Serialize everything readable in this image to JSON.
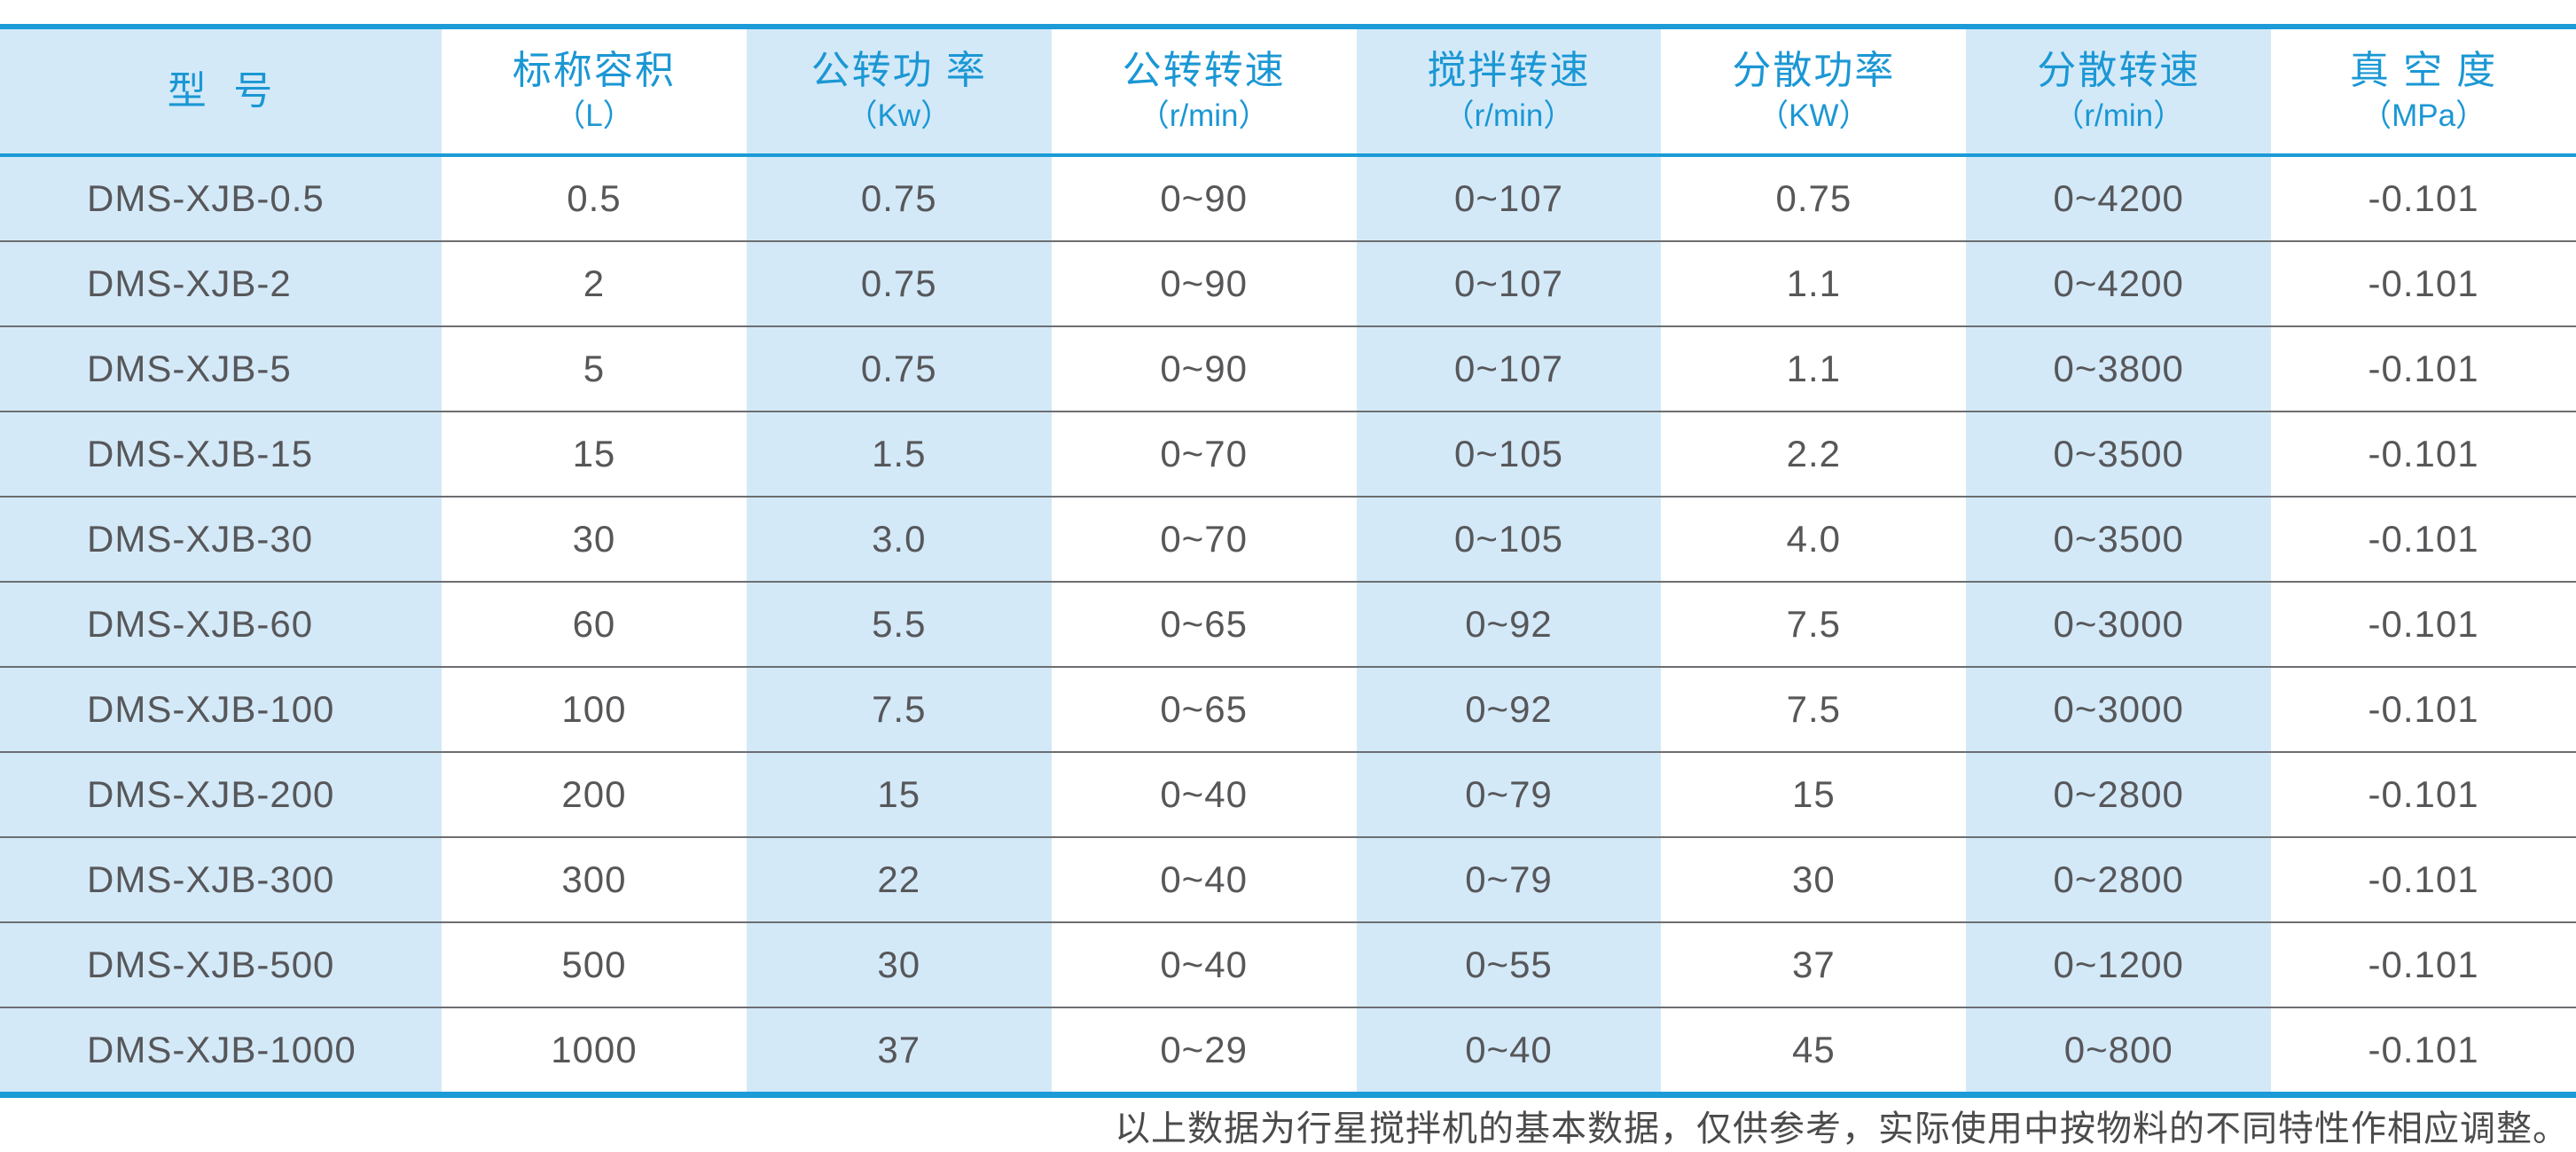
{
  "table": {
    "columns": [
      {
        "label": "型  号",
        "unit": ""
      },
      {
        "label": "标称容积",
        "unit": "（L）"
      },
      {
        "label": "公转功 率",
        "unit": "（Kw）"
      },
      {
        "label": "公转转速",
        "unit": "（r/min）"
      },
      {
        "label": "搅拌转速",
        "unit": "（r/min）"
      },
      {
        "label": "分散功率",
        "unit": "（KW）"
      },
      {
        "label": "分散转速",
        "unit": "（r/min）"
      },
      {
        "label": "真 空 度",
        "unit": "（MPa）"
      }
    ],
    "rows": [
      [
        "DMS-XJB-0.5",
        "0.5",
        "0.75",
        "0~90",
        "0~107",
        "0.75",
        "0~4200",
        "-0.101"
      ],
      [
        "DMS-XJB-2",
        "2",
        "0.75",
        "0~90",
        "0~107",
        "1.1",
        "0~4200",
        "-0.101"
      ],
      [
        "DMS-XJB-5",
        "5",
        "0.75",
        "0~90",
        "0~107",
        "1.1",
        "0~3800",
        "-0.101"
      ],
      [
        "DMS-XJB-15",
        "15",
        "1.5",
        "0~70",
        "0~105",
        "2.2",
        "0~3500",
        "-0.101"
      ],
      [
        "DMS-XJB-30",
        "30",
        "3.0",
        "0~70",
        "0~105",
        "4.0",
        "0~3500",
        "-0.101"
      ],
      [
        "DMS-XJB-60",
        "60",
        "5.5",
        "0~65",
        "0~92",
        "7.5",
        "0~3000",
        "-0.101"
      ],
      [
        "DMS-XJB-100",
        "100",
        "7.5",
        "0~65",
        "0~92",
        "7.5",
        "0~3000",
        "-0.101"
      ],
      [
        "DMS-XJB-200",
        "200",
        "15",
        "0~40",
        "0~79",
        "15",
        "0~2800",
        "-0.101"
      ],
      [
        "DMS-XJB-300",
        "300",
        "22",
        "0~40",
        "0~79",
        "30",
        "0~2800",
        "-0.101"
      ],
      [
        "DMS-XJB-500",
        "500",
        "30",
        "0~40",
        "0~55",
        "37",
        "0~1200",
        "-0.101"
      ],
      [
        "DMS-XJB-1000",
        "1000",
        "37",
        "0~29",
        "0~40",
        "45",
        "0~800",
        "-0.101"
      ]
    ]
  },
  "footnote": "以上数据为行星搅拌机的基本数据，仅供参考，实际使用中按物料的不同特性作相应调整。",
  "colors": {
    "accent_blue": "#1b9bd7",
    "stripe_blue": "#d3e9f8",
    "data_text": "#57575a",
    "separator_gray": "#6d6e71"
  }
}
